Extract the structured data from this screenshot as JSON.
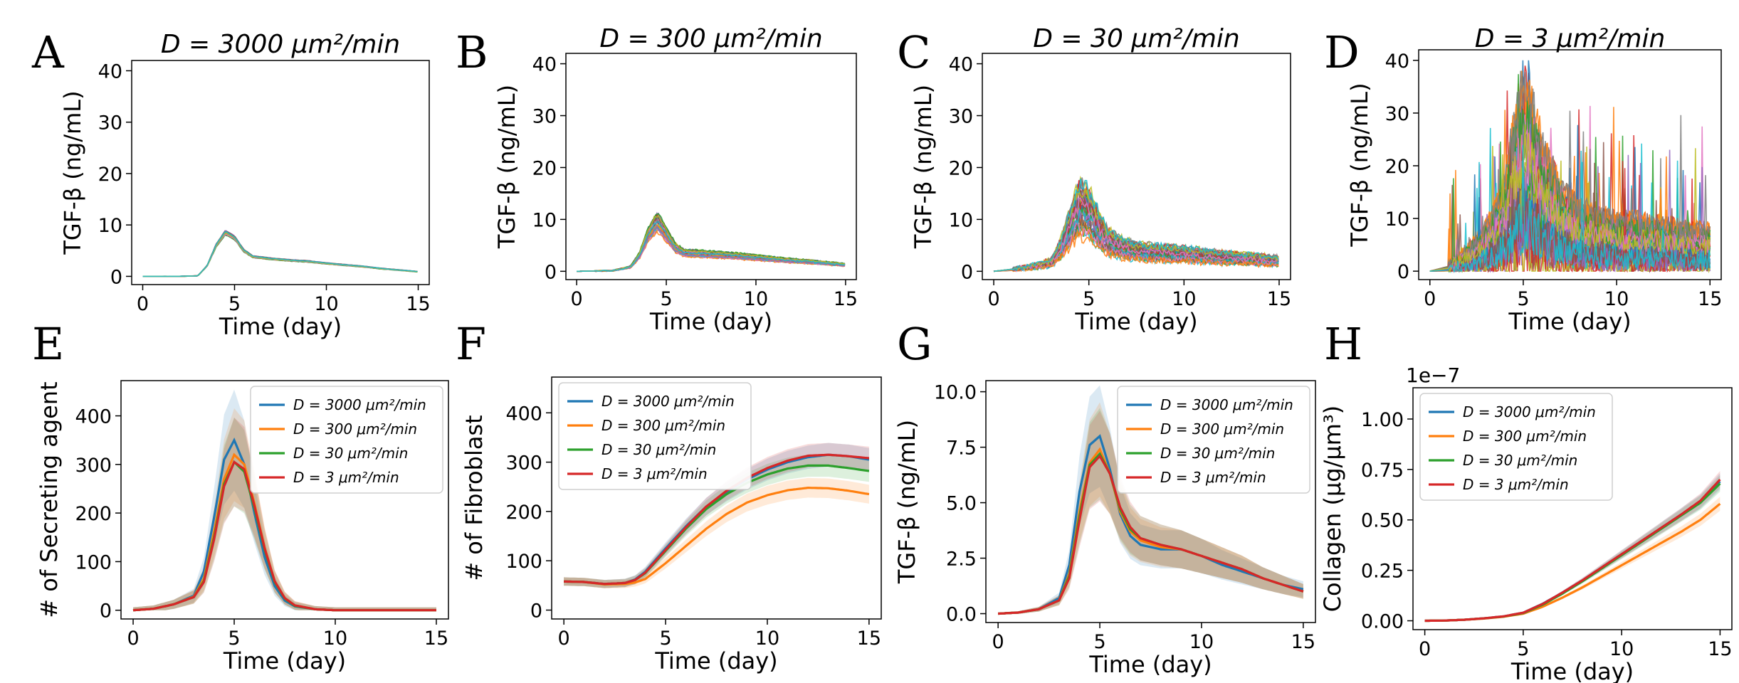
{
  "panels": [
    {
      "letter": "A",
      "title": "D = 3000 μm²/min"
    },
    {
      "letter": "B",
      "title": "D = 300 μm²/min"
    },
    {
      "letter": "C",
      "title": "D = 30 μm²/min"
    },
    {
      "letter": "D",
      "title": "D = 3 μm²/min"
    },
    {
      "letter": "E",
      "title": ""
    },
    {
      "letter": "F",
      "title": ""
    },
    {
      "letter": "G",
      "title": ""
    },
    {
      "letter": "H",
      "title": ""
    }
  ],
  "colors": {
    "blue": "#1f77b4",
    "orange": "#ff7f0e",
    "green": "#2ca02c",
    "red": "#d62728",
    "cyan": "#17becf",
    "purple": "#9467bd",
    "pink": "#e377c2",
    "olive": "#bcbd22",
    "brown": "#8c564b",
    "gray": "#7f7f7f"
  },
  "chart_data": [
    {
      "id": "A",
      "type": "line",
      "title": "D = 3000 μm²/min",
      "xlabel": "Time (day)",
      "ylabel": "TGF-β (ng/mL)",
      "xlim": [
        0,
        15
      ],
      "ylim": [
        0,
        40
      ],
      "xticks": [
        0,
        5,
        10,
        15
      ],
      "yticks": [
        0,
        10,
        20,
        30,
        40
      ],
      "trajectories": "many overlapping runs",
      "x": [
        0,
        2,
        3,
        3.5,
        4,
        4.5,
        5,
        5.5,
        6,
        7,
        8,
        9,
        10,
        11,
        12,
        13,
        14,
        15
      ],
      "series": [
        {
          "values": [
            0,
            0,
            0.1,
            2,
            6,
            8.5,
            7.5,
            5,
            3.8,
            3.4,
            3.1,
            2.9,
            2.5,
            2.2,
            1.9,
            1.5,
            1.2,
            0.9
          ]
        }
      ]
    },
    {
      "id": "B",
      "type": "line",
      "title": "D = 300 μm²/min",
      "xlabel": "Time (day)",
      "ylabel": "TGF-β (ng/mL)",
      "xlim": [
        0,
        15
      ],
      "ylim": [
        0,
        40
      ],
      "xticks": [
        0,
        5,
        10,
        15
      ],
      "yticks": [
        0,
        10,
        20,
        30,
        40
      ],
      "trajectories": "many overlapping runs",
      "x": [
        0,
        2,
        3,
        3.5,
        4,
        4.5,
        5,
        5.5,
        6,
        7,
        8,
        9,
        10,
        11,
        12,
        13,
        14,
        15
      ],
      "series": [
        {
          "values": [
            0,
            0.1,
            0.8,
            3,
            7,
            9.5,
            7,
            4.5,
            3.5,
            3.3,
            3.1,
            2.9,
            2.6,
            2.3,
            2.0,
            1.8,
            1.5,
            1.2
          ]
        }
      ]
    },
    {
      "id": "C",
      "type": "line",
      "title": "D = 30 μm²/min",
      "xlabel": "Time (day)",
      "ylabel": "TGF-β (ng/mL)",
      "xlim": [
        0,
        15
      ],
      "ylim": [
        0,
        40
      ],
      "xticks": [
        0,
        5,
        10,
        15
      ],
      "yticks": [
        0,
        10,
        20,
        30,
        40
      ],
      "trajectories": "many noisy runs, peaks up to ~17",
      "x": [
        0,
        1,
        2,
        3,
        3.5,
        4,
        4.5,
        5,
        5.5,
        6,
        7,
        8,
        9,
        10,
        11,
        12,
        13,
        14,
        15
      ],
      "series": [
        {
          "values": [
            0,
            0.3,
            0.8,
            1.5,
            4,
            8,
            12,
            11,
            8,
            5.5,
            4,
            3.5,
            3.3,
            3.1,
            2.8,
            2.5,
            2.3,
            2.1,
            1.8
          ]
        }
      ]
    },
    {
      "id": "D",
      "type": "line",
      "title": "D = 3 μm²/min",
      "xlabel": "Time (day)",
      "ylabel": "TGF-β (ng/mL)",
      "xlim": [
        0,
        15
      ],
      "ylim": [
        0,
        40
      ],
      "xticks": [
        0,
        5,
        10,
        15
      ],
      "yticks": [
        0,
        10,
        20,
        30,
        40
      ],
      "trajectories": "many very noisy runs, peaks up to ~40",
      "x": [
        0,
        1,
        2,
        3,
        4,
        4.5,
        5,
        5.5,
        6,
        7,
        8,
        9,
        10,
        11,
        12,
        13,
        14,
        15
      ],
      "series": [
        {
          "values": [
            0,
            0.5,
            2,
            4,
            8,
            14,
            18,
            16,
            12,
            8,
            6,
            5.5,
            5,
            4.8,
            4.5,
            4.3,
            4,
            3.8
          ]
        }
      ]
    },
    {
      "id": "E",
      "type": "line",
      "xlabel": "Time (day)",
      "ylabel": "# of Secreting agent",
      "xlim": [
        0,
        15
      ],
      "ylim": [
        0,
        450
      ],
      "xticks": [
        0,
        5,
        10,
        15
      ],
      "yticks": [
        0,
        100,
        200,
        300,
        400
      ],
      "legend": "top-right",
      "x": [
        0,
        1,
        2,
        3,
        3.5,
        4,
        4.5,
        5,
        5.5,
        6,
        6.5,
        7,
        7.5,
        8,
        9,
        10,
        11,
        12,
        13,
        14,
        15
      ],
      "series": [
        {
          "name": "D = 3000 μm²/min",
          "color": "#1f77b4",
          "values": [
            0,
            3,
            12,
            30,
            80,
            190,
            310,
            350,
            300,
            200,
            110,
            50,
            20,
            8,
            2,
            0,
            0,
            0,
            0,
            0,
            0
          ]
        },
        {
          "name": "D = 300 μm²/min",
          "color": "#ff7f0e",
          "values": [
            0,
            3,
            12,
            28,
            65,
            160,
            270,
            320,
            300,
            220,
            130,
            60,
            25,
            10,
            2,
            0,
            0,
            0,
            0,
            0,
            0
          ]
        },
        {
          "name": "D = 30 μm²/min",
          "color": "#2ca02c",
          "values": [
            0,
            3,
            12,
            27,
            60,
            150,
            260,
            305,
            285,
            210,
            125,
            58,
            24,
            9,
            2,
            0,
            0,
            0,
            0,
            0,
            0
          ]
        },
        {
          "name": "D = 3 μm²/min",
          "color": "#d62728",
          "values": [
            0,
            3,
            12,
            27,
            58,
            145,
            255,
            305,
            290,
            215,
            128,
            60,
            25,
            10,
            2,
            0,
            0,
            0,
            0,
            0,
            0
          ]
        }
      ]
    },
    {
      "id": "F",
      "type": "line",
      "xlabel": "Time (day)",
      "ylabel": "# of Fibroblast",
      "xlim": [
        0,
        15
      ],
      "ylim": [
        0,
        450
      ],
      "xticks": [
        0,
        5,
        10,
        15
      ],
      "yticks": [
        0,
        100,
        200,
        300,
        400
      ],
      "legend": "top-left",
      "x": [
        0,
        1,
        2,
        3,
        3.5,
        4,
        5,
        6,
        7,
        8,
        9,
        10,
        11,
        12,
        13,
        14,
        15
      ],
      "series": [
        {
          "name": "D = 3000 μm²/min",
          "color": "#1f77b4",
          "values": [
            58,
            57,
            53,
            55,
            62,
            78,
            125,
            170,
            210,
            240,
            265,
            285,
            300,
            310,
            315,
            312,
            305
          ]
        },
        {
          "name": "D = 300 μm²/min",
          "color": "#ff7f0e",
          "values": [
            58,
            57,
            52,
            53,
            56,
            63,
            95,
            130,
            165,
            195,
            218,
            233,
            243,
            248,
            247,
            242,
            235
          ]
        },
        {
          "name": "D = 30 μm²/min",
          "color": "#2ca02c",
          "values": [
            58,
            57,
            53,
            55,
            61,
            75,
            120,
            165,
            205,
            235,
            258,
            275,
            287,
            293,
            293,
            288,
            282
          ]
        },
        {
          "name": "D = 3 μm²/min",
          "color": "#d62728",
          "values": [
            58,
            57,
            53,
            55,
            61,
            76,
            122,
            168,
            210,
            242,
            268,
            288,
            303,
            313,
            315,
            312,
            308
          ]
        }
      ]
    },
    {
      "id": "G",
      "type": "line",
      "xlabel": "Time (day)",
      "ylabel": "TGF-β (ng/mL)",
      "xlim": [
        0,
        15
      ],
      "ylim": [
        0,
        10
      ],
      "xticks": [
        0,
        5,
        10,
        15
      ],
      "yticks": [
        0.0,
        2.5,
        5.0,
        7.5,
        10.0
      ],
      "legend": "top-right",
      "x": [
        0,
        1,
        2,
        3,
        3.5,
        4,
        4.5,
        5,
        5.5,
        6,
        6.5,
        7,
        8,
        9,
        10,
        11,
        12,
        13,
        14,
        15
      ],
      "series": [
        {
          "name": "D = 3000 μm²/min",
          "color": "#1f77b4",
          "values": [
            0,
            0.05,
            0.2,
            0.7,
            2.2,
            5.5,
            7.6,
            8.0,
            6.5,
            4.5,
            3.5,
            3.1,
            2.9,
            2.9,
            2.6,
            2.2,
            1.9,
            1.6,
            1.3,
            1.1
          ]
        },
        {
          "name": "D = 300 μm²/min",
          "color": "#ff7f0e",
          "values": [
            0,
            0.05,
            0.2,
            0.6,
            1.8,
            4.6,
            6.8,
            7.4,
            6.3,
            4.6,
            3.7,
            3.3,
            3.0,
            2.9,
            2.6,
            2.3,
            2.0,
            1.6,
            1.3,
            1.0
          ]
        },
        {
          "name": "D = 30 μm²/min",
          "color": "#2ca02c",
          "values": [
            0,
            0.05,
            0.2,
            0.6,
            1.7,
            4.4,
            6.7,
            7.2,
            6.3,
            4.7,
            3.8,
            3.4,
            3.1,
            2.9,
            2.6,
            2.3,
            2.0,
            1.6,
            1.3,
            1.0
          ]
        },
        {
          "name": "D = 3 μm²/min",
          "color": "#d62728",
          "values": [
            0,
            0.05,
            0.2,
            0.6,
            1.6,
            4.2,
            6.6,
            7.1,
            6.3,
            4.8,
            3.9,
            3.4,
            3.1,
            2.9,
            2.6,
            2.3,
            2.0,
            1.6,
            1.3,
            1.0
          ]
        }
      ]
    },
    {
      "id": "H",
      "type": "line",
      "xlabel": "Time (day)",
      "ylabel": "Collagen (μg/μm³)",
      "xlim": [
        0,
        15
      ],
      "ylim": [
        0,
        1.1e-07
      ],
      "xticks": [
        0,
        5,
        10,
        15
      ],
      "yticks": [
        0.0,
        0.25,
        0.5,
        0.75,
        1.0
      ],
      "ytick_labels": [
        "0.00",
        "0.25",
        "0.50",
        "0.75",
        "1.00"
      ],
      "y_offset_label": "1e−7",
      "legend": "top-left",
      "x": [
        0,
        1,
        2,
        3,
        4,
        5,
        6,
        7,
        8,
        9,
        10,
        11,
        12,
        13,
        14,
        15
      ],
      "series": [
        {
          "name": "D = 3000 μm²/min",
          "color": "#1f77b4",
          "values": [
            0,
            1e-10,
            5e-10,
            1.2e-09,
            2.2e-09,
            4e-09,
            8.5e-09,
            1.4e-08,
            2e-08,
            2.65e-08,
            3.3e-08,
            3.95e-08,
            4.6e-08,
            5.25e-08,
            5.9e-08,
            6.9e-08
          ]
        },
        {
          "name": "D = 300 μm²/min",
          "color": "#ff7f0e",
          "values": [
            0,
            1e-10,
            5e-10,
            1.1e-09,
            2e-09,
            3.5e-09,
            7e-09,
            1.15e-08,
            1.65e-08,
            2.2e-08,
            2.75e-08,
            3.3e-08,
            3.85e-08,
            4.4e-08,
            5e-08,
            5.8e-08
          ]
        },
        {
          "name": "D = 30 μm²/min",
          "color": "#2ca02c",
          "values": [
            0,
            1e-10,
            5e-10,
            1.2e-09,
            2.1e-09,
            3.8e-09,
            8e-09,
            1.35e-08,
            1.95e-08,
            2.6e-08,
            3.25e-08,
            3.9e-08,
            4.55e-08,
            5.2e-08,
            5.85e-08,
            6.8e-08
          ]
        },
        {
          "name": "D = 3 μm²/min",
          "color": "#d62728",
          "values": [
            0,
            1e-10,
            5e-10,
            1.2e-09,
            2.2e-09,
            4e-09,
            8.4e-09,
            1.4e-08,
            2e-08,
            2.65e-08,
            3.3e-08,
            3.95e-08,
            4.6e-08,
            5.25e-08,
            5.95e-08,
            7e-08
          ]
        }
      ]
    }
  ]
}
